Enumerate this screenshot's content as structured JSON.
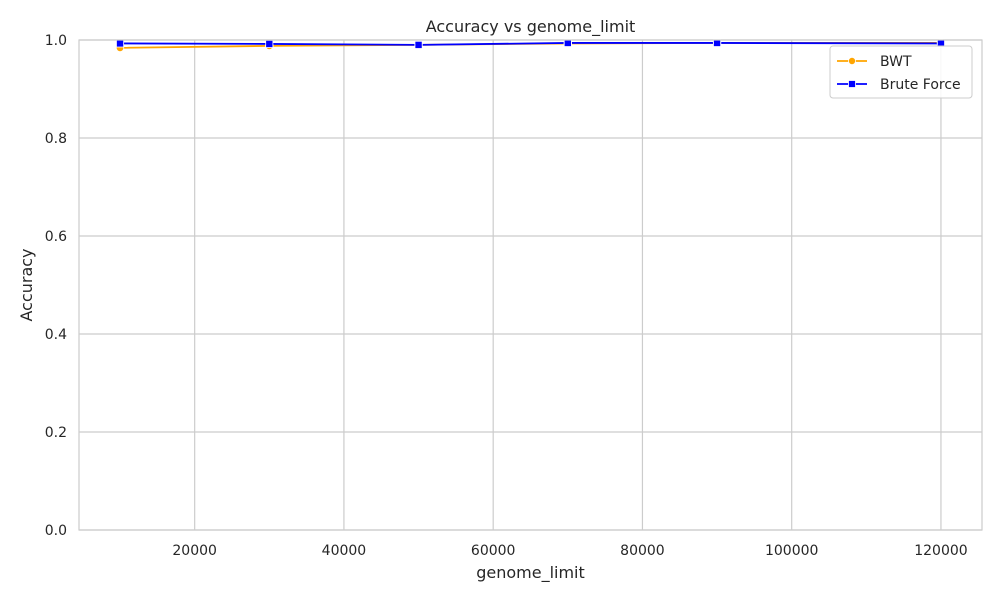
{
  "chart_data": {
    "type": "line",
    "title": "Accuracy vs genome_limit",
    "xlabel": "genome_limit",
    "ylabel": "Accuracy",
    "xlim": [
      4500,
      125500
    ],
    "ylim": [
      0,
      1
    ],
    "x_ticks": [
      20000,
      40000,
      60000,
      80000,
      100000,
      120000
    ],
    "y_ticks": [
      0.0,
      0.2,
      0.4,
      0.6,
      0.8,
      1.0
    ],
    "grid": true,
    "legend_position": "top-right",
    "series": [
      {
        "name": "BWT",
        "color": "#FFA500",
        "marker": "circle",
        "x": [
          10000,
          30000,
          50000,
          70000,
          90000,
          120000
        ],
        "y": [
          0.984,
          0.988,
          0.99,
          0.993,
          0.994,
          0.994
        ]
      },
      {
        "name": "Brute Force",
        "color": "#0000FF",
        "marker": "square",
        "x": [
          10000,
          30000,
          50000,
          70000,
          90000,
          120000
        ],
        "y": [
          0.993,
          0.992,
          0.99,
          0.994,
          0.994,
          0.993
        ]
      }
    ]
  }
}
